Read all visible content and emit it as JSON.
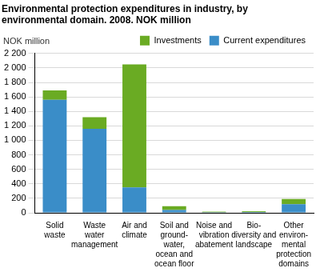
{
  "chart_data": {
    "type": "bar",
    "title": "Environmental protection expenditures in industry, by environmental domain. 2008. NOK million",
    "y_label": "NOK million",
    "categories": [
      [
        "Solid",
        "waste"
      ],
      [
        "Waste",
        "water",
        "management"
      ],
      [
        "Air and",
        "climate"
      ],
      [
        "Soil and",
        "ground-",
        "water,",
        "ocean and",
        "ocean floor"
      ],
      [
        "Noise and",
        "vibration",
        "abatement"
      ],
      [
        "Bio-",
        "diversity and",
        "landscape"
      ],
      [
        "Other",
        "environ-",
        "mental",
        "protection",
        "domains"
      ]
    ],
    "series": [
      {
        "name": "Current expenditures",
        "color": "#3a8dc8",
        "values": [
          1560,
          1160,
          350,
          40,
          8,
          12,
          120
        ]
      },
      {
        "name": "Investments",
        "color": "#6aab23",
        "values": [
          130,
          160,
          1700,
          50,
          8,
          10,
          70
        ]
      }
    ],
    "stacked": true,
    "ylim": [
      0,
      2200
    ],
    "yticks": [
      0,
      200,
      400,
      600,
      800,
      {
        "value": 1000,
        "label": "1 000"
      },
      {
        "value": 1200,
        "label": "1 200"
      },
      {
        "value": 1400,
        "label": "1 400"
      },
      {
        "value": 1600,
        "label": "1 600"
      },
      {
        "value": 1800,
        "label": "1 800"
      },
      {
        "value": 2000,
        "label": "2 000"
      },
      {
        "value": 2200,
        "label": "2 200"
      }
    ],
    "grid": true,
    "legend": "upper right"
  }
}
